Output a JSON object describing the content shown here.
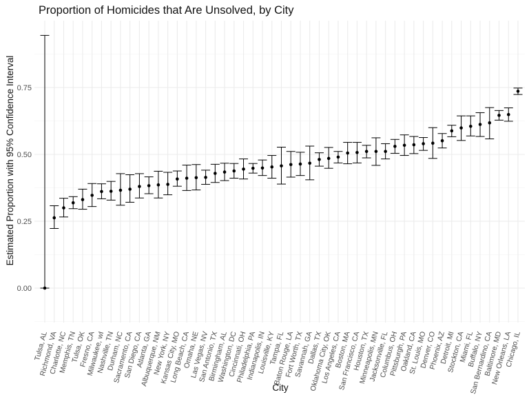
{
  "chart_data": {
    "type": "errorbar",
    "title": "Proportion of Homicides that Are Unsolved, by City",
    "xlabel": "City",
    "ylabel": "Estimated Proportion with 95% Confidence Interval",
    "ylim": [
      -0.05,
      0.97
    ],
    "y_ticks": [
      "0.00",
      "0.25",
      "0.50",
      "0.75"
    ],
    "grid": true,
    "categories": [
      "Tulsa, AL",
      "Richmond, VA",
      "Charlotte, NC",
      "Memphis, TN",
      "Tulsa, OK",
      "Fresno, CA",
      "Milwaukee, wI",
      "Nashville, TN",
      "Durham, NC",
      "Sacramento, CA",
      "San Diego, CA",
      "Atlanta, GA",
      "Albuquerque, NM",
      "New York, NY",
      "Kansas City, MO",
      "Long Beach, CA",
      "Omaha, NE",
      "Las Vegas, NV",
      "San Antonio, TX",
      "Birmingham, AL",
      "Washington, DC",
      "Cincinnati, OH",
      "Philadelphia, PA",
      "Indianapolis, IN",
      "Louisville, KY",
      "Tampa, FL",
      "Baton Rouge, LA",
      "Fort Worth, TX",
      "Savannah, GA",
      "Dallas, TX",
      "Oklahoma City, OK",
      "Los Angeles, CA",
      "Boston, MA",
      "San Francisco, CA",
      "Houston, TX",
      "Minneapolis, MN",
      "Jacksonville, FL",
      "Columbus, OH",
      "Pittsburgh, PA",
      "Oakland, CA",
      "St. Louis, MO",
      "Denver, CO",
      "Phoenix, AZ",
      "Detroit, MI",
      "Stockton, CA",
      "Miami, FL",
      "Buffalo, NY",
      "San Bernardino, CA",
      "Baltimore, MD",
      "New Orleans, LA",
      "Chicago, IL"
    ],
    "estimate": [
      0.0,
      0.263,
      0.3,
      0.319,
      0.331,
      0.347,
      0.361,
      0.362,
      0.366,
      0.37,
      0.38,
      0.383,
      0.386,
      0.388,
      0.408,
      0.411,
      0.413,
      0.414,
      0.429,
      0.434,
      0.438,
      0.445,
      0.448,
      0.449,
      0.453,
      0.457,
      0.462,
      0.464,
      0.467,
      0.481,
      0.485,
      0.49,
      0.505,
      0.507,
      0.511,
      0.511,
      0.511,
      0.53,
      0.534,
      0.536,
      0.54,
      0.542,
      0.551,
      0.588,
      0.599,
      0.605,
      0.612,
      0.618,
      0.646,
      0.649,
      0.736
    ],
    "conf_low": [
      0.0,
      0.223,
      0.266,
      0.297,
      0.295,
      0.305,
      0.334,
      0.329,
      0.31,
      0.321,
      0.337,
      0.353,
      0.337,
      0.349,
      0.381,
      0.365,
      0.367,
      0.388,
      0.395,
      0.402,
      0.411,
      0.408,
      0.43,
      0.421,
      0.411,
      0.389,
      0.415,
      0.421,
      0.405,
      0.456,
      0.448,
      0.468,
      0.465,
      0.468,
      0.487,
      0.459,
      0.483,
      0.504,
      0.496,
      0.503,
      0.515,
      0.485,
      0.524,
      0.566,
      0.552,
      0.569,
      0.567,
      0.558,
      0.628,
      0.624,
      0.724
    ],
    "conf_high": [
      0.945,
      0.308,
      0.336,
      0.342,
      0.37,
      0.391,
      0.39,
      0.399,
      0.428,
      0.424,
      0.428,
      0.416,
      0.437,
      0.433,
      0.438,
      0.46,
      0.462,
      0.441,
      0.463,
      0.467,
      0.466,
      0.483,
      0.466,
      0.479,
      0.496,
      0.527,
      0.511,
      0.508,
      0.531,
      0.506,
      0.526,
      0.511,
      0.545,
      0.545,
      0.534,
      0.562,
      0.54,
      0.556,
      0.573,
      0.567,
      0.563,
      0.6,
      0.578,
      0.609,
      0.644,
      0.644,
      0.656,
      0.675,
      0.664,
      0.674,
      0.748
    ]
  }
}
